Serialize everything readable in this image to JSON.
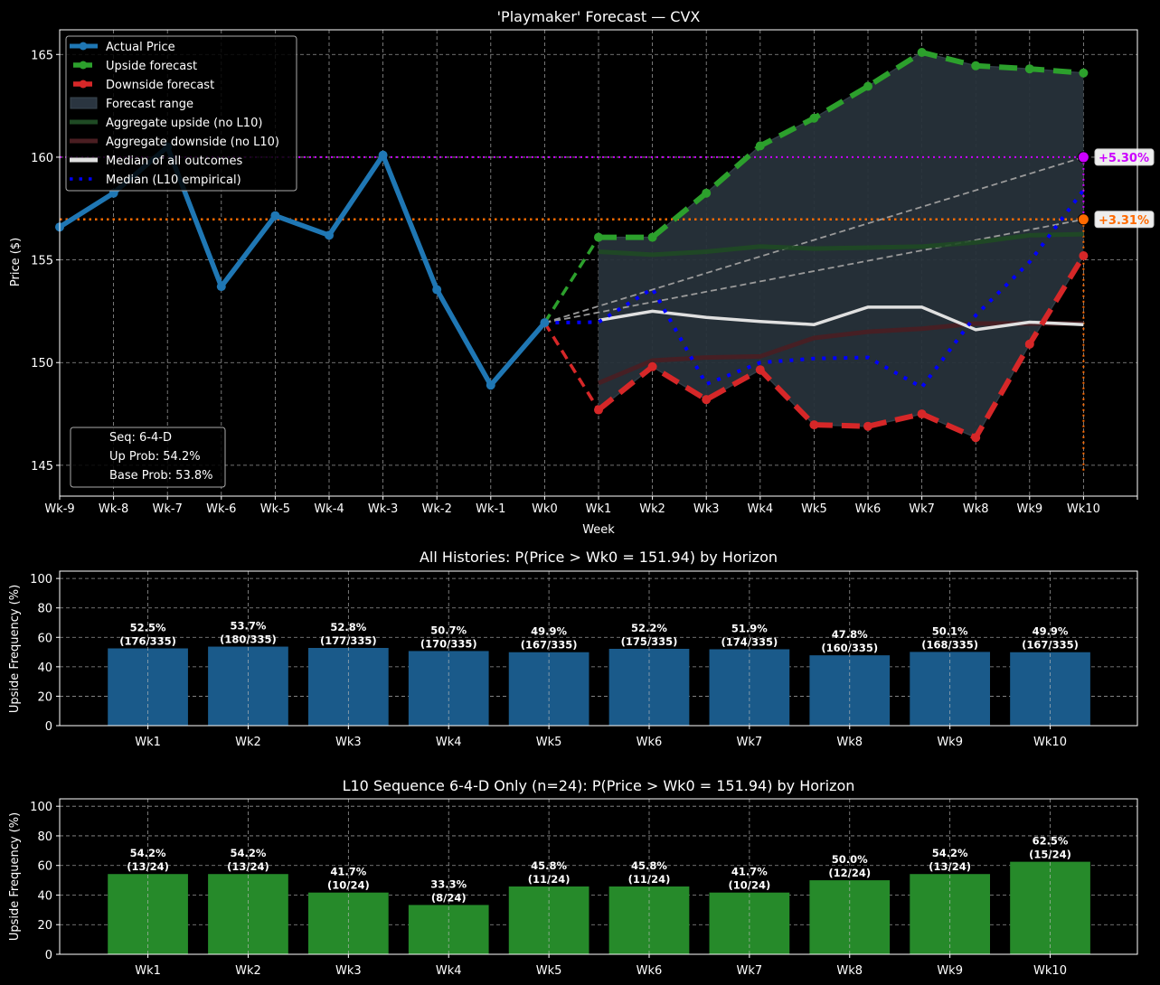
{
  "colors": {
    "background": "#000000",
    "actual": "#1f77b4",
    "upside": "#2ca02c",
    "downside": "#d62728",
    "range_fill": "#27313a",
    "agg_upside": "#1f4a24",
    "agg_downside": "#4a1e22",
    "median_all": "#e0e0e0",
    "median_l10": "#0000ff",
    "target_high": "#cc00ff",
    "target_low": "#ff6a00",
    "grey_trend": "#9a9a9a",
    "bar_all": "#1a5a8a",
    "bar_l10": "#268a2a"
  },
  "chart_data": [
    {
      "type": "line",
      "title": "'Playmaker' Forecast — CVX",
      "xlabel": "Week",
      "ylabel": "Price ($)",
      "x": [
        "Wk-9",
        "Wk-8",
        "Wk-7",
        "Wk-6",
        "Wk-5",
        "Wk-4",
        "Wk-3",
        "Wk-2",
        "Wk-1",
        "Wk0",
        "Wk1",
        "Wk2",
        "Wk3",
        "Wk4",
        "Wk5",
        "Wk6",
        "Wk7",
        "Wk8",
        "Wk9",
        "Wk10"
      ],
      "xlim_index": [
        0,
        20
      ],
      "ylim": [
        143.5,
        166.2
      ],
      "yticks": [
        145,
        150,
        155,
        160,
        165
      ],
      "grid": true,
      "legend_position": "top-left",
      "series": [
        {
          "name": "Actual Price",
          "key": "actual",
          "x_start": 0,
          "values": [
            156.6,
            158.25,
            160.5,
            153.7,
            157.15,
            156.2,
            160.1,
            153.55,
            148.9,
            151.94
          ]
        },
        {
          "name": "Upside forecast",
          "key": "upside",
          "x_start": 9,
          "values": [
            151.94,
            156.1,
            156.1,
            158.25,
            160.55,
            161.9,
            163.45,
            165.1,
            164.45,
            164.3,
            164.1
          ]
        },
        {
          "name": "Downside forecast",
          "key": "downside",
          "x_start": 9,
          "values": [
            151.94,
            147.7,
            149.8,
            148.2,
            149.65,
            146.97,
            146.9,
            147.5,
            146.35,
            150.9,
            155.2
          ]
        },
        {
          "name": "Forecast range",
          "key": "range",
          "x_start": 10
        },
        {
          "name": "Aggregate upside (no L10)",
          "key": "agg_upside",
          "x_start": 10,
          "values": [
            155.4,
            155.25,
            155.4,
            155.65,
            155.55,
            155.6,
            155.65,
            155.85,
            156.2,
            156.25
          ]
        },
        {
          "name": "Aggregate downside (no L10)",
          "key": "agg_downside",
          "x_start": 10,
          "values": [
            149.0,
            150.1,
            150.25,
            150.3,
            151.2,
            151.5,
            151.65,
            151.9,
            151.9,
            151.9
          ]
        },
        {
          "name": "Median of all outcomes",
          "key": "median_all",
          "x_start": 10,
          "values": [
            152.06,
            152.5,
            152.2,
            152.0,
            151.85,
            152.7,
            152.7,
            151.6,
            151.97,
            151.85
          ]
        },
        {
          "name": "Median (L10 empirical)",
          "key": "median_l10",
          "x_start": 9,
          "values": [
            151.94,
            151.97,
            153.6,
            148.95,
            150.0,
            150.2,
            150.25,
            148.8,
            152.3,
            154.9,
            158.4
          ]
        }
      ],
      "reference_lines": {
        "target_high_price": 160.0,
        "target_low_price": 156.97,
        "wk0_price": 151.94
      },
      "annotations": [
        {
          "label": "+5.30%",
          "price": 160.0,
          "color_key": "target_high"
        },
        {
          "label": "+3.31%",
          "price": 156.97,
          "color_key": "target_low"
        }
      ],
      "info_box": [
        "Seq: 6-4-D",
        "Up Prob: 54.2%",
        "Base Prob: 53.8%"
      ]
    },
    {
      "type": "bar",
      "title": "All Histories: P(Price > Wk0 = 151.94) by Horizon",
      "xlabel": "",
      "ylabel": "Upside Frequency (%)",
      "ylim": [
        0,
        105
      ],
      "yticks": [
        0,
        20,
        40,
        60,
        80,
        100
      ],
      "grid": true,
      "categories": [
        "Wk1",
        "Wk2",
        "Wk3",
        "Wk4",
        "Wk5",
        "Wk6",
        "Wk7",
        "Wk8",
        "Wk9",
        "Wk10"
      ],
      "values": [
        52.5,
        53.7,
        52.8,
        50.7,
        49.9,
        52.2,
        51.9,
        47.8,
        50.1,
        49.9
      ],
      "labels_pct": [
        "52.5%",
        "53.7%",
        "52.8%",
        "50.7%",
        "49.9%",
        "52.2%",
        "51.9%",
        "47.8%",
        "50.1%",
        "49.9%"
      ],
      "labels_count": [
        "(176/335)",
        "(180/335)",
        "(177/335)",
        "(170/335)",
        "(167/335)",
        "(175/335)",
        "(174/335)",
        "(160/335)",
        "(168/335)",
        "(167/335)"
      ],
      "color_key": "bar_all"
    },
    {
      "type": "bar",
      "title": "L10 Sequence 6-4-D Only (n=24): P(Price > Wk0 = 151.94) by Horizon",
      "xlabel": "",
      "ylabel": "Upside Frequency (%)",
      "ylim": [
        0,
        105
      ],
      "yticks": [
        0,
        20,
        40,
        60,
        80,
        100
      ],
      "grid": true,
      "categories": [
        "Wk1",
        "Wk2",
        "Wk3",
        "Wk4",
        "Wk5",
        "Wk6",
        "Wk7",
        "Wk8",
        "Wk9",
        "Wk10"
      ],
      "values": [
        54.2,
        54.2,
        41.7,
        33.3,
        45.8,
        45.8,
        41.7,
        50.0,
        54.2,
        62.5
      ],
      "labels_pct": [
        "54.2%",
        "54.2%",
        "41.7%",
        "33.3%",
        "45.8%",
        "45.8%",
        "41.7%",
        "50.0%",
        "54.2%",
        "62.5%"
      ],
      "labels_count": [
        "(13/24)",
        "(13/24)",
        "(10/24)",
        "(8/24)",
        "(11/24)",
        "(11/24)",
        "(10/24)",
        "(12/24)",
        "(13/24)",
        "(15/24)"
      ],
      "color_key": "bar_l10"
    }
  ]
}
